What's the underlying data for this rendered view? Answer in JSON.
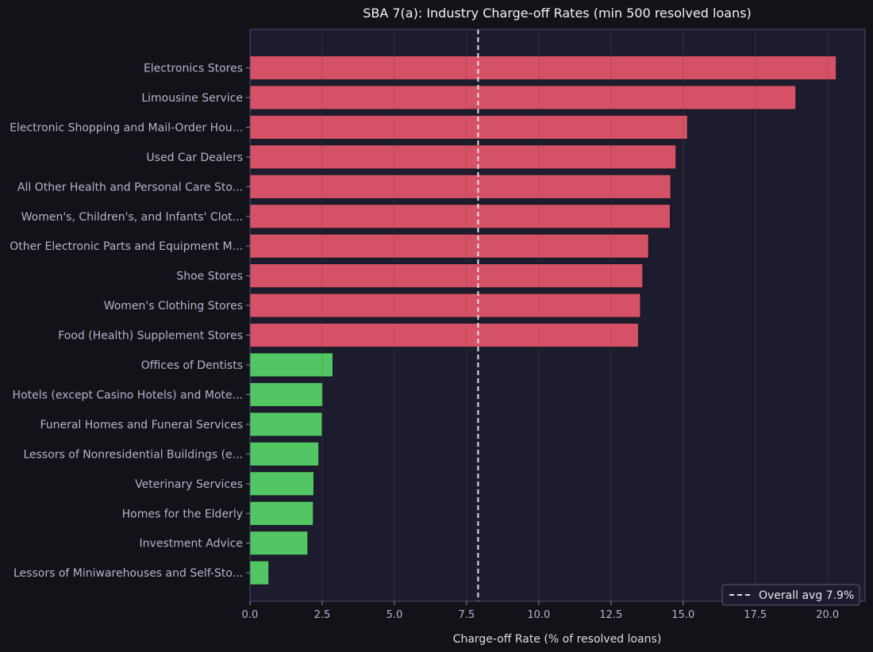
{
  "colors": {
    "background": "#121219",
    "plot_bg": "#1c1c2e",
    "plot_border": "#4a4a6a",
    "high": "#d55266",
    "low": "#52c663",
    "avg_line": "#e0e0ee",
    "grid": "#3a3346"
  },
  "chart_data": {
    "type": "bar",
    "orientation": "horizontal",
    "title": "SBA 7(a): Industry Charge-off Rates (min 500 resolved loans)",
    "xlabel": "Charge-off Rate (% of resolved loans)",
    "ylabel": "",
    "xlim": [
      0,
      21.3
    ],
    "xticks": [
      0,
      2.5,
      5.0,
      7.5,
      10.0,
      12.5,
      15.0,
      17.5,
      20.0
    ],
    "xtick_labels": [
      "0.0",
      "2.5",
      "5.0",
      "7.5",
      "10.0",
      "12.5",
      "15.0",
      "17.5",
      "20.0"
    ],
    "grid": true,
    "categories": [
      "Electronics Stores",
      "Limousine Service",
      "Electronic Shopping and Mail-Order Hou...",
      "Used Car Dealers",
      "All Other Health and Personal Care Sto...",
      "Women's, Children's, and Infants' Clot...",
      "Other Electronic Parts and Equipment M...",
      "Shoe Stores",
      "Women's Clothing Stores",
      "Food (Health) Supplement Stores",
      "Offices of Dentists",
      "Hotels (except Casino Hotels) and Mote...",
      "Funeral Homes and Funeral Services",
      "Lessors of Nonresidential Buildings (e...",
      "Veterinary Services",
      "Homes for the Elderly",
      "Investment Advice",
      "Lessors of Miniwarehouses and Self-Sto..."
    ],
    "values": [
      20.3,
      18.9,
      15.15,
      14.75,
      14.57,
      14.55,
      13.8,
      13.6,
      13.52,
      13.45,
      2.87,
      2.52,
      2.5,
      2.38,
      2.21,
      2.19,
      2.0,
      0.65
    ],
    "groups": [
      "high",
      "high",
      "high",
      "high",
      "high",
      "high",
      "high",
      "high",
      "high",
      "high",
      "low",
      "low",
      "low",
      "low",
      "low",
      "low",
      "low",
      "low"
    ],
    "reference_line": {
      "value": 7.9,
      "label": "Overall avg 7.9%"
    },
    "legend_position": "lower-right"
  }
}
